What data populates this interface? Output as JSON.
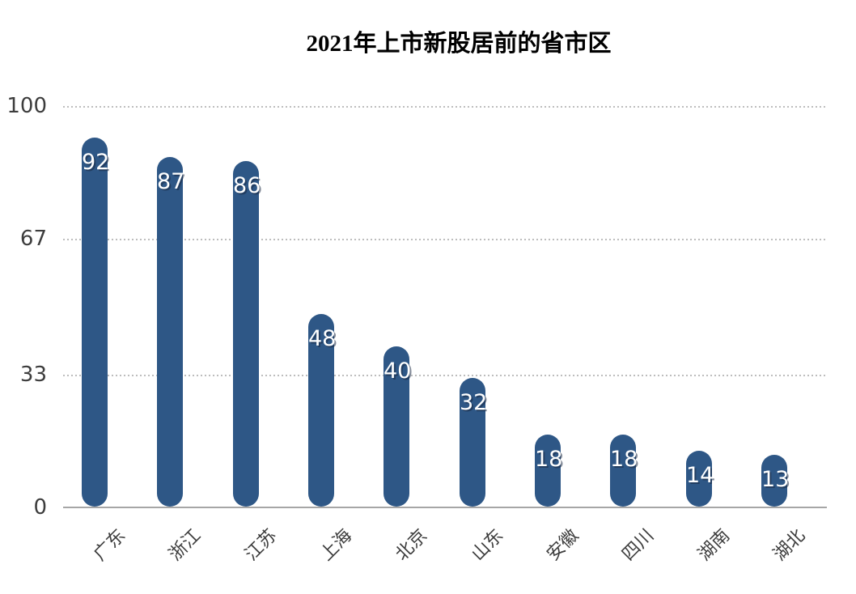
{
  "title": "2021年上市新股居前的省市区",
  "colors": {
    "background": "#ffffff",
    "bar": "#2E5786",
    "grid_line": "#bdbdbd",
    "axis_line": "#a6a6a6",
    "tick_label": "#3d3d3d",
    "value_label": "#ffffff",
    "value_label_shadow": "#24395c",
    "title_color": "#000000"
  },
  "chart_data": {
    "type": "bar",
    "title": "2021年上市新股居前的省市区",
    "categories": [
      "广东",
      "浙江",
      "江苏",
      "上海",
      "北京",
      "山东",
      "安徽",
      "四川",
      "湖南",
      "湖北"
    ],
    "values": [
      92,
      87,
      86,
      48,
      40,
      32,
      18,
      18,
      14,
      13
    ],
    "xlabel": "",
    "ylabel": "",
    "ylim": [
      0,
      100
    ],
    "yticks": [
      0,
      33,
      67,
      100
    ],
    "grid": "horizontal-dotted",
    "legend": "none",
    "bar_style": "capsule-rounded-ends",
    "x_label_rotation_deg": -45,
    "value_label_position": "inside-top"
  }
}
